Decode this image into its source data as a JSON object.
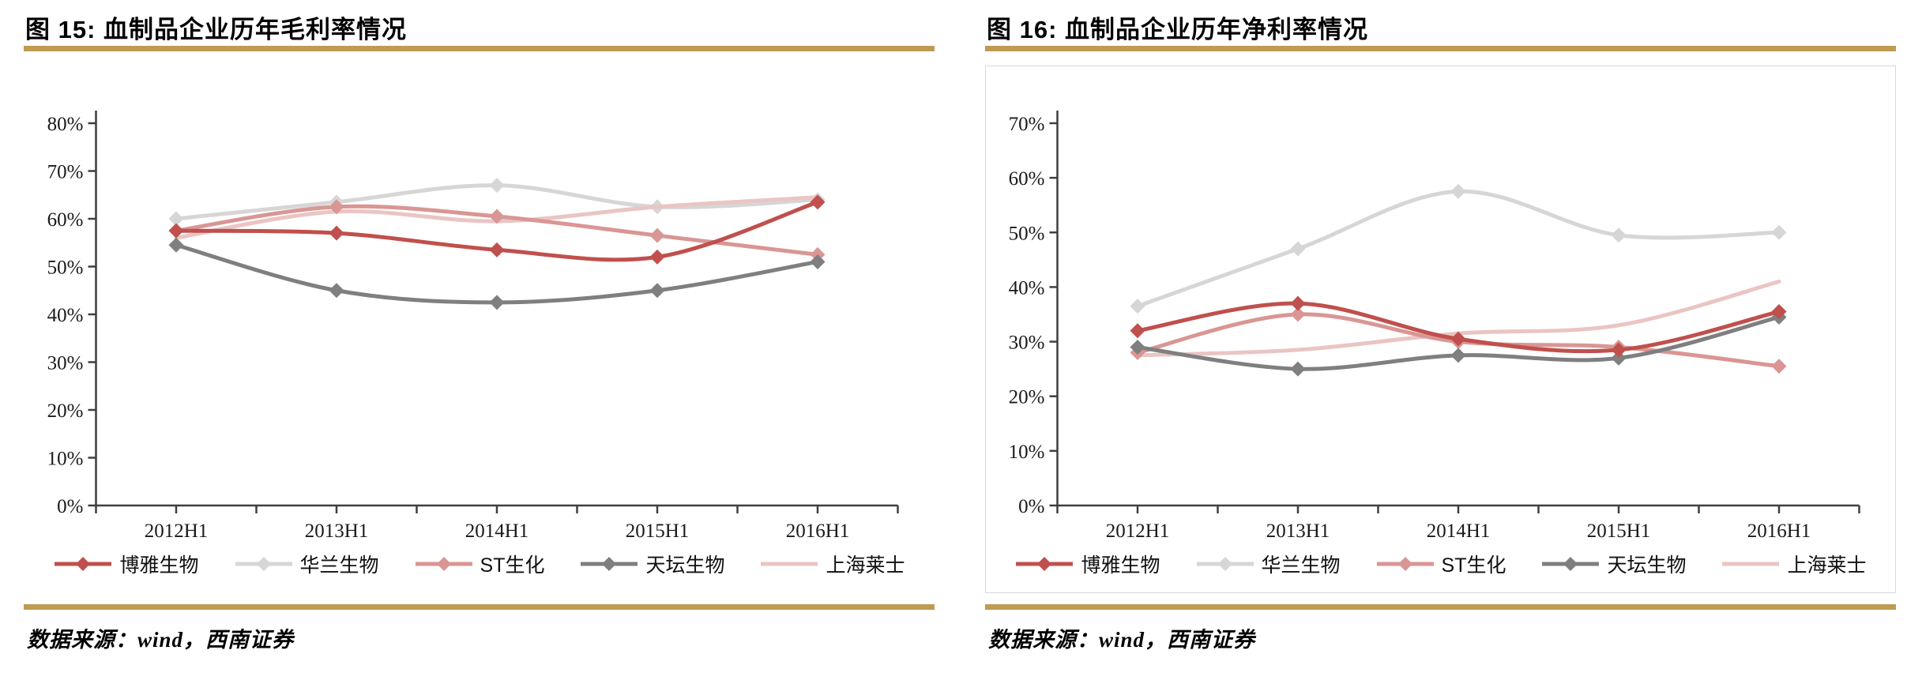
{
  "styles": {
    "gold_rule_color": "#bf9b52",
    "axis_color": "#3f3f3f",
    "border_color": "#d9d9d9"
  },
  "chart_data": [
    {
      "type": "line",
      "title": "图 15: 血制品企业历年毛利率情况",
      "source": "数据来源：wind，西南证券",
      "categories": [
        "2012H1",
        "2013H1",
        "2014H1",
        "2015H1",
        "2016H1"
      ],
      "y_axis": {
        "min": 0,
        "max": 80,
        "step": 10,
        "unit": "%"
      },
      "grid": false,
      "legend_position": "bottom",
      "bordered": false,
      "draw_order": [
        1,
        4,
        2,
        3,
        0
      ],
      "series": [
        {
          "name": "博雅生物",
          "color": "#c0504d",
          "marker": "diamond",
          "values": [
            57.5,
            57,
            53.5,
            52,
            63.5
          ]
        },
        {
          "name": "华兰生物",
          "color": "#d6d6d6",
          "marker": "diamond",
          "values": [
            60,
            63.5,
            67,
            62.5,
            64
          ]
        },
        {
          "name": "ST生化",
          "color": "#d99694",
          "marker": "diamond",
          "values": [
            57.5,
            62.5,
            60.5,
            56.5,
            52.5
          ]
        },
        {
          "name": "天坛生物",
          "color": "#7f7f7f",
          "marker": "diamond",
          "values": [
            54.5,
            45,
            42.5,
            45,
            51
          ]
        },
        {
          "name": "上海莱士",
          "color": "#eac5c3",
          "marker": "none",
          "values": [
            56,
            61.5,
            59.5,
            62.5,
            64.5
          ]
        }
      ]
    },
    {
      "type": "line",
      "title": "图 16: 血制品企业历年净利率情况",
      "source": "数据来源：wind，西南证券",
      "categories": [
        "2012H1",
        "2013H1",
        "2014H1",
        "2015H1",
        "2016H1"
      ],
      "y_axis": {
        "min": 0,
        "max": 70,
        "step": 10,
        "unit": "%"
      },
      "grid": false,
      "legend_position": "bottom",
      "bordered": true,
      "draw_order": [
        1,
        4,
        2,
        3,
        0
      ],
      "series": [
        {
          "name": "博雅生物",
          "color": "#c0504d",
          "marker": "diamond",
          "values": [
            32,
            37,
            30.5,
            28.5,
            35.5
          ]
        },
        {
          "name": "华兰生物",
          "color": "#d6d6d6",
          "marker": "diamond",
          "values": [
            36.5,
            47,
            57.5,
            49.5,
            50
          ]
        },
        {
          "name": "ST生化",
          "color": "#d99694",
          "marker": "diamond",
          "values": [
            28,
            35,
            30,
            29,
            25.5
          ]
        },
        {
          "name": "天坛生物",
          "color": "#7f7f7f",
          "marker": "diamond",
          "values": [
            29,
            25,
            27.5,
            27,
            34.5
          ]
        },
        {
          "name": "上海莱士",
          "color": "#eac5c3",
          "marker": "none",
          "values": [
            27.5,
            28.5,
            31.5,
            33,
            41
          ]
        }
      ]
    }
  ]
}
